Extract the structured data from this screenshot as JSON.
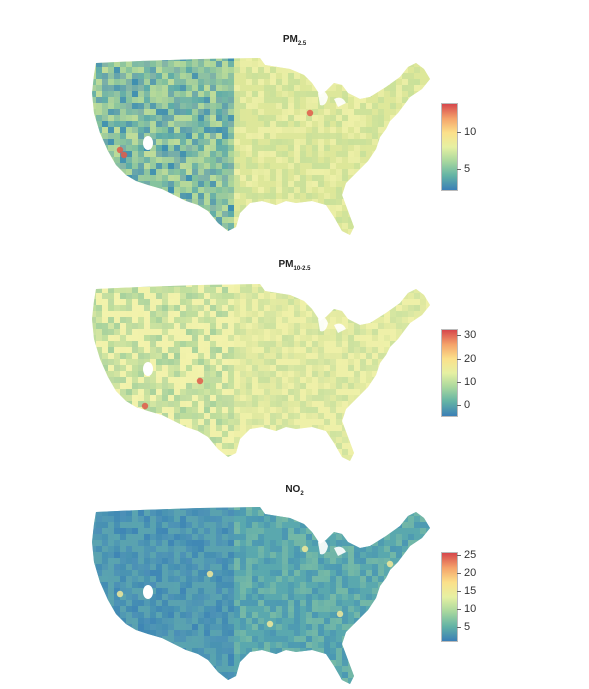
{
  "maps": [
    {
      "id": "pm25",
      "title_main": "PM",
      "title_sub": "2.5",
      "legend_ticks": [
        "10",
        "5"
      ],
      "legend_range": [
        2,
        14
      ],
      "legend_tick_values": [
        10,
        5
      ],
      "base_colors": [
        "#dde79a",
        "#c8e09a",
        "#eef0a8"
      ],
      "west_colors": [
        "#7fbf9e",
        "#5aa9a8",
        "#a9d49a",
        "#3f8fb0"
      ],
      "hotspots": "#e05a4a"
    },
    {
      "id": "pm10",
      "title_main": "PM",
      "title_sub": "10-2.5",
      "legend_ticks": [
        "30",
        "20",
        "10",
        "0"
      ],
      "legend_range": [
        -5,
        33
      ],
      "legend_tick_values": [
        30,
        20,
        10,
        0
      ],
      "base_colors": [
        "#eef0a8",
        "#dfe8a0",
        "#c9e09e"
      ],
      "west_colors": [
        "#bcdc9c",
        "#a4d09c",
        "#f2f2ac"
      ],
      "hotspots": "#e05a4a"
    },
    {
      "id": "no2",
      "title_main": "NO",
      "title_sub": "2",
      "legend_ticks": [
        "25",
        "20",
        "15",
        "10",
        "5"
      ],
      "legend_range": [
        1,
        26
      ],
      "legend_tick_values": [
        25,
        20,
        15,
        10,
        5
      ],
      "base_colors": [
        "#5aa8ae",
        "#4b97b3",
        "#76b9a6"
      ],
      "west_colors": [
        "#4b8fb7",
        "#3f86b5",
        "#5aa1b0"
      ],
      "hotspots": "#f2ea9a"
    }
  ],
  "colors": {
    "scale": [
      "#3b7fb6",
      "#63b3a5",
      "#a8d79e",
      "#e6f0a2",
      "#fbe08a",
      "#f4a26a",
      "#d6474c"
    ]
  }
}
